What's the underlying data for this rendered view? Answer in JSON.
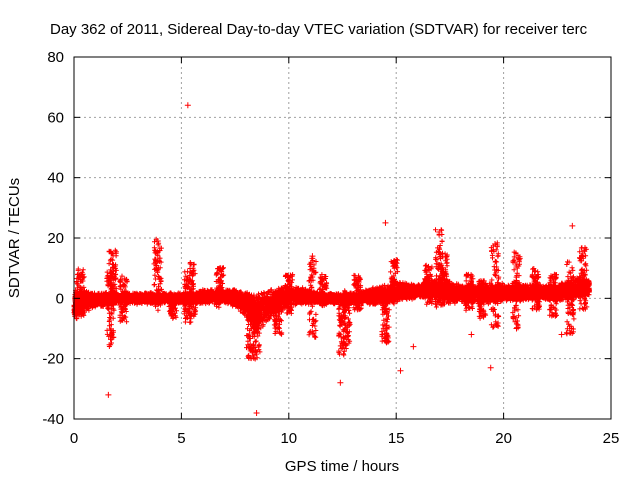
{
  "chart_data": {
    "type": "scatter",
    "title": "Day 362 of 2011, Sidereal Day-to-day VTEC variation (SDTVAR) for receiver terc",
    "xlabel": "GPS time / hours",
    "ylabel": "SDTVAR / TECUs",
    "xlim": [
      0,
      25
    ],
    "ylim": [
      -40,
      80
    ],
    "xticks": [
      "0",
      "5",
      "10",
      "15",
      "20",
      "25"
    ],
    "yticks": [
      "-40",
      "-20",
      "0",
      "20",
      "40",
      "60",
      "80"
    ],
    "grid": true,
    "marker": "+",
    "color": "#ff0000",
    "series": [
      {
        "name": "SDTVAR",
        "band": {
          "x": [
            0,
            0.5,
            1,
            1.5,
            2,
            2.5,
            3,
            3.5,
            4,
            4.5,
            5,
            5.5,
            6,
            6.5,
            7,
            7.5,
            8,
            8.5,
            9,
            9.5,
            10,
            10.5,
            11,
            11.5,
            12,
            12.5,
            13,
            13.5,
            14,
            14.5,
            15,
            15.5,
            16,
            16.5,
            17,
            17.5,
            18,
            18.5,
            19,
            19.5,
            20,
            20.5,
            21,
            21.5,
            22,
            22.5,
            23,
            23.5,
            24
          ],
          "low": [
            -8,
            -5,
            -3,
            -3,
            -2,
            -2,
            -2,
            -2,
            -2,
            -2,
            -2,
            -2,
            -2,
            -2,
            -2,
            -3,
            -6,
            -12,
            -8,
            -5,
            -3,
            -2,
            -2,
            -2,
            -2,
            -2,
            -2,
            -2,
            -2,
            -2,
            -1,
            -1,
            0,
            0,
            -1,
            -2,
            -2,
            -2,
            -2,
            -2,
            -1,
            -1,
            -1,
            -1,
            -1,
            -1,
            -1,
            0,
            0
          ],
          "high": [
            3,
            3,
            2,
            2,
            2,
            2,
            2,
            2,
            2,
            2,
            2,
            2,
            3,
            3,
            3,
            3,
            2,
            2,
            3,
            4,
            5,
            4,
            3,
            2,
            2,
            2,
            2,
            3,
            4,
            5,
            6,
            5,
            5,
            6,
            7,
            6,
            5,
            5,
            5,
            5,
            5,
            5,
            5,
            5,
            5,
            5,
            6,
            7,
            6
          ]
        },
        "spikes": [
          {
            "x": 0.3,
            "lo": -6,
            "hi": 10
          },
          {
            "x": 1.7,
            "lo": -16,
            "hi": 9
          },
          {
            "x": 1.8,
            "lo": 0,
            "hi": 17
          },
          {
            "x": 2.3,
            "lo": -8,
            "hi": 8
          },
          {
            "x": 3.9,
            "lo": -5,
            "hi": 20
          },
          {
            "x": 4.6,
            "lo": -7,
            "hi": 2
          },
          {
            "x": 5.3,
            "lo": -8,
            "hi": 9
          },
          {
            "x": 5.5,
            "lo": -6,
            "hi": 12
          },
          {
            "x": 6.8,
            "lo": -3,
            "hi": 11
          },
          {
            "x": 8.2,
            "lo": -20,
            "hi": 0
          },
          {
            "x": 8.5,
            "lo": -21,
            "hi": 1
          },
          {
            "x": 9.5,
            "lo": -12,
            "hi": 3
          },
          {
            "x": 10.0,
            "lo": -5,
            "hi": 8
          },
          {
            "x": 11.1,
            "lo": -13,
            "hi": 14
          },
          {
            "x": 11.6,
            "lo": -3,
            "hi": 8
          },
          {
            "x": 12.5,
            "lo": -19,
            "hi": 2
          },
          {
            "x": 12.7,
            "lo": -16,
            "hi": 3
          },
          {
            "x": 13.2,
            "lo": -4,
            "hi": 8
          },
          {
            "x": 14.5,
            "lo": -15,
            "hi": 1
          },
          {
            "x": 14.9,
            "lo": -2,
            "hi": 13
          },
          {
            "x": 16.5,
            "lo": -2,
            "hi": 11
          },
          {
            "x": 17.0,
            "lo": -3,
            "hi": 23
          },
          {
            "x": 17.2,
            "lo": -2,
            "hi": 15
          },
          {
            "x": 18.4,
            "lo": -4,
            "hi": 8
          },
          {
            "x": 19.0,
            "lo": -7,
            "hi": 6
          },
          {
            "x": 19.6,
            "lo": -10,
            "hi": 20
          },
          {
            "x": 20.6,
            "lo": -10,
            "hi": 16
          },
          {
            "x": 21.5,
            "lo": -4,
            "hi": 10
          },
          {
            "x": 22.3,
            "lo": -6,
            "hi": 8
          },
          {
            "x": 23.1,
            "lo": -12,
            "hi": 14
          },
          {
            "x": 23.7,
            "lo": -4,
            "hi": 17
          }
        ],
        "outliers": [
          {
            "x": 5.3,
            "y": 64
          },
          {
            "x": 1.6,
            "y": -32
          },
          {
            "x": 8.5,
            "y": -38
          },
          {
            "x": 12.4,
            "y": -28
          },
          {
            "x": 15.2,
            "y": -24
          },
          {
            "x": 14.5,
            "y": 25
          },
          {
            "x": 23.2,
            "y": 24
          },
          {
            "x": 19.4,
            "y": -23
          },
          {
            "x": 17.0,
            "y": 22
          },
          {
            "x": 3.9,
            "y": 19
          },
          {
            "x": 11.1,
            "y": 14
          },
          {
            "x": 0.4,
            "y": 8
          },
          {
            "x": 1.8,
            "y": -13
          },
          {
            "x": 15.8,
            "y": -16
          },
          {
            "x": 19.6,
            "y": 18
          },
          {
            "x": 20.6,
            "y": -10
          },
          {
            "x": 18.5,
            "y": -12
          },
          {
            "x": 22.7,
            "y": -12
          }
        ]
      }
    ]
  }
}
